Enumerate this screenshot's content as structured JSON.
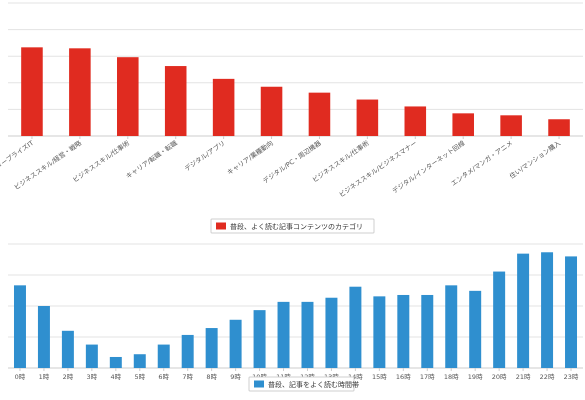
{
  "chart_data": [
    {
      "type": "bar",
      "categories": [
        "デジタル/エンタープライズIT",
        "ビジネススキル/経営・戦略",
        "ビジネススキル/仕事術",
        "キャリア/転職・転職",
        "デジタル/アプリ",
        "キャリア/業種動向",
        "デジタル/PC・周辺機器",
        "ビジネススキル/仕事術",
        "ビジネススキル/ビジネスマナー",
        "デジタル/インターネット回線",
        "エンタメ/マンガ・アニメ",
        "住い/マンション購入"
      ],
      "values": [
        90,
        89,
        80,
        71,
        58,
        50,
        44,
        37,
        30,
        23,
        21,
        17
      ],
      "ylim": [
        0,
        135
      ],
      "series": [
        {
          "name": "普段、よく読む記事コンテンツのカテゴリ",
          "values": [
            90,
            89,
            80,
            71,
            58,
            50,
            44,
            37,
            30,
            23,
            21,
            17
          ]
        }
      ],
      "grid": true,
      "legend": "bottom-center",
      "color": "#e02b20"
    },
    {
      "type": "bar",
      "categories": [
        "0時",
        "1時",
        "2時",
        "3時",
        "4時",
        "5時",
        "6時",
        "7時",
        "8時",
        "9時",
        "10時",
        "11時",
        "12時",
        "13時",
        "14時",
        "15時",
        "16時",
        "17時",
        "18時",
        "19時",
        "20時",
        "21時",
        "22時",
        "23時"
      ],
      "values": [
        60,
        45,
        27,
        17,
        8,
        10,
        17,
        24,
        29,
        35,
        42,
        48,
        48,
        51,
        59,
        52,
        53,
        53,
        60,
        56,
        70,
        83,
        84,
        81
      ],
      "ylim": [
        0,
        90
      ],
      "series": [
        {
          "name": "普段、記事をよく読む時間帯",
          "values": [
            60,
            45,
            27,
            17,
            8,
            10,
            17,
            24,
            29,
            35,
            42,
            48,
            48,
            51,
            59,
            52,
            53,
            53,
            60,
            56,
            70,
            83,
            84,
            81
          ]
        }
      ],
      "grid": true,
      "legend": "bottom-center",
      "color": "#2f8fcf"
    }
  ]
}
